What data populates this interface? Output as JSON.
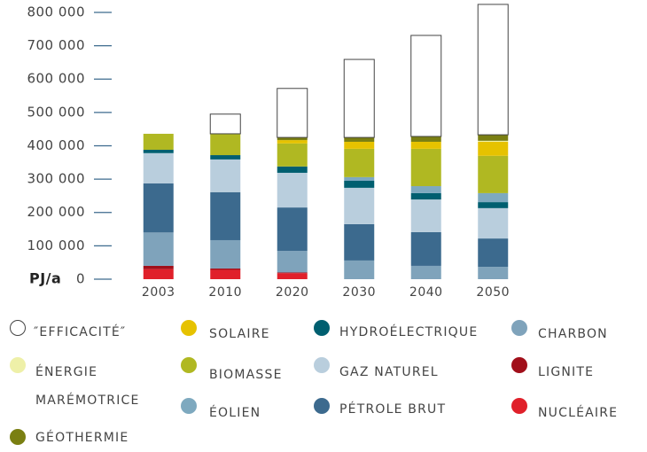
{
  "chart_data": {
    "type": "stacked_bar",
    "y_label": "PJ/a",
    "categories": [
      "2003",
      "2010",
      "2020",
      "2030",
      "2040",
      "2050"
    ],
    "ylim": [
      0,
      830000
    ],
    "yticks": [
      0,
      {
        "value": 100000,
        "label": "100 000"
      },
      {
        "value": 200000,
        "label": "200 000"
      },
      {
        "value": 300000,
        "label": "300 000"
      },
      {
        "value": 400000,
        "label": "400 000"
      },
      {
        "value": 500000,
        "label": "500 000"
      },
      {
        "value": 600000,
        "label": "600 000"
      },
      {
        "value": 700000,
        "label": "700 000"
      },
      {
        "value": 800000,
        "label": "800 000"
      }
    ],
    "series": [
      {
        "name": "NUCLÉAIRE",
        "color": "#e0202a",
        "values": [
          30000,
          28000,
          18000,
          0,
          0,
          0
        ]
      },
      {
        "name": "LIGNITE",
        "color": "#a10f1a",
        "values": [
          10000,
          4000,
          2000,
          0,
          0,
          0
        ]
      },
      {
        "name": "CHARBON",
        "color": "#7fa3bb",
        "values": [
          100000,
          85000,
          65000,
          56000,
          40000,
          37000
        ]
      },
      {
        "name": "PÉTROLE BRUT",
        "color": "#3c6a8e",
        "values": [
          147000,
          144000,
          130000,
          109000,
          101000,
          85000
        ]
      },
      {
        "name": "GAZ NATUREL",
        "color": "#b9cedd",
        "values": [
          91000,
          98000,
          104000,
          109000,
          98000,
          91000
        ]
      },
      {
        "name": "HYDROÉLECTRIQUE",
        "color": "#005f70",
        "values": [
          10000,
          13000,
          19000,
          21000,
          19000,
          18000
        ]
      },
      {
        "name": "ÉOLIEN",
        "color": "#7ea9bf",
        "values": [
          0,
          0,
          0,
          11000,
          21000,
          27000
        ]
      },
      {
        "name": "BIOMASSE",
        "color": "#b0b822",
        "values": [
          48000,
          64000,
          69000,
          85000,
          112000,
          112000
        ]
      },
      {
        "name": "SOLAIRE",
        "color": "#e6c200",
        "values": [
          0,
          0,
          10000,
          21000,
          21000,
          42000
        ]
      },
      {
        "name": "ÉNERGIE MARÉMOTRICE",
        "color": "#eef0a8",
        "values": [
          0,
          0,
          0,
          0,
          0,
          3000
        ]
      },
      {
        "name": "GÉOTHERMIE",
        "color": "#7a7f12",
        "values": [
          0,
          0,
          8000,
          13000,
          16000,
          18000
        ]
      },
      {
        "name": "″EFFICACITÉ″",
        "color": "#ffffff",
        "values": [
          0,
          59000,
          147000,
          234000,
          303000,
          391000
        ]
      }
    ]
  }
}
